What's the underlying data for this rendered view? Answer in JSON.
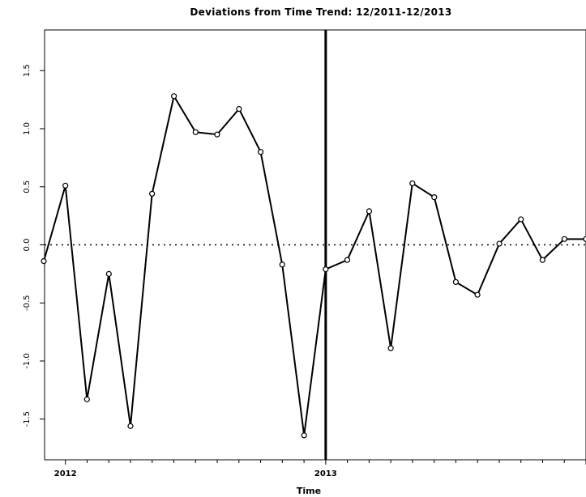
{
  "chart_data": {
    "type": "line",
    "title": "Deviations from Time Trend: 12/2011-12/2013",
    "xlabel": "Time",
    "ylabel": "",
    "xlim": [
      2011.92,
      2014.0
    ],
    "ylim": [
      -1.85,
      1.85
    ],
    "x_ticks": [
      2012,
      2013
    ],
    "x_tick_labels": [
      "2012",
      "2013"
    ],
    "y_ticks": [
      -1.5,
      -1.0,
      -0.5,
      0.0,
      0.5,
      1.0,
      1.5
    ],
    "y_tick_labels": [
      "-1.5",
      "-1.0",
      "-0.5",
      "0.0",
      "0.5",
      "1.0",
      "1.5"
    ],
    "reference_line": {
      "y": 0.0,
      "style": "dotted"
    },
    "vertical_line": {
      "x": 2013.0
    },
    "series": [
      {
        "marker": "circle",
        "color": "#000000",
        "x": [
          2011.917,
          2012.0,
          2012.083,
          2012.167,
          2012.25,
          2012.333,
          2012.417,
          2012.5,
          2012.583,
          2012.667,
          2012.75,
          2012.833,
          2012.917,
          2013.0,
          2013.083,
          2013.167,
          2013.25,
          2013.333,
          2013.417,
          2013.5,
          2013.583,
          2013.667,
          2013.75,
          2013.833,
          2013.917,
          2014.0
        ],
        "y": [
          -0.14,
          0.51,
          -1.33,
          -0.25,
          -1.56,
          0.44,
          1.28,
          0.97,
          0.95,
          1.17,
          0.8,
          -0.17,
          -1.64,
          -0.21,
          -0.13,
          0.29,
          -0.89,
          0.53,
          0.41,
          -0.32,
          -0.43,
          0.01,
          0.22,
          -0.13,
          0.05,
          0.05
        ]
      }
    ]
  }
}
